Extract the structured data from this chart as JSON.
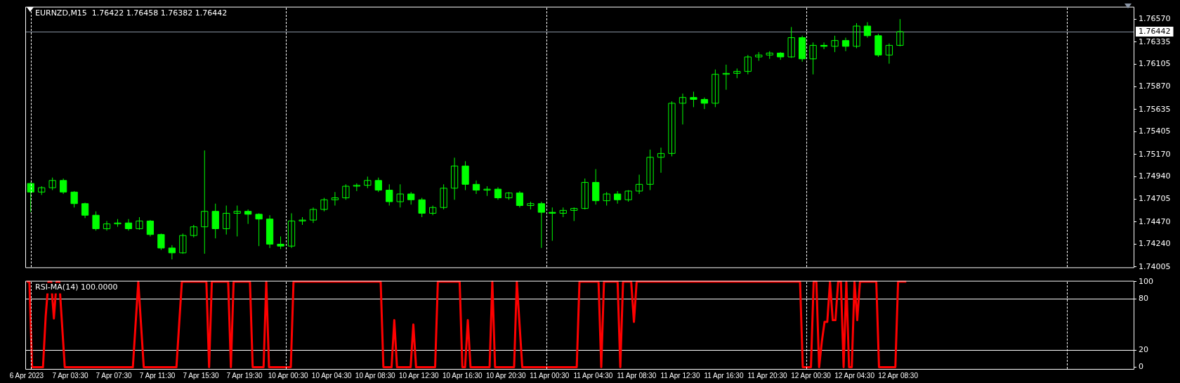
{
  "chart_data": [
    {
      "type": "candlestick",
      "title": "EURNZD,M15  1.76422 1.76458 1.76382 1.76442",
      "color": "#00ff00",
      "grid": false,
      "tick_labels": "y",
      "categories": [
        null,
        null,
        null,
        null,
        null,
        null,
        null,
        null,
        null,
        null,
        null,
        null,
        null,
        null,
        null,
        null,
        null,
        null,
        null,
        null,
        null,
        null,
        null,
        null,
        null,
        null,
        null,
        null,
        null,
        null,
        null,
        null,
        null,
        null,
        null,
        null,
        null,
        null,
        null,
        null,
        null,
        null,
        null,
        null,
        null,
        null,
        null,
        null,
        null,
        null,
        null,
        null,
        null,
        null,
        null,
        null,
        null,
        null,
        null,
        null,
        null,
        null,
        null,
        null,
        null,
        null,
        null,
        null,
        null,
        null,
        null,
        null,
        null,
        null,
        null,
        null,
        null,
        null,
        null,
        null,
        null,
        null,
        null,
        null,
        null,
        null,
        null,
        null,
        null,
        null,
        null,
        null,
        null,
        null,
        null,
        null,
        null,
        null,
        null,
        null,
        null,
        null
      ],
      "ohlc": [
        [
          1.74869,
          1.7488,
          1.74573,
          1.7478
        ],
        [
          1.7478,
          1.7484,
          1.7475,
          1.74825
        ],
        [
          1.74825,
          1.7493,
          1.748,
          1.749
        ],
        [
          1.749,
          1.7492,
          1.7476,
          1.7478
        ],
        [
          1.7478,
          1.7479,
          1.7462,
          1.7466
        ],
        [
          1.7466,
          1.7467,
          1.7451,
          1.7454
        ],
        [
          1.7454,
          1.7458,
          1.7438,
          1.744
        ],
        [
          1.744,
          1.7448,
          1.7438,
          1.7445
        ],
        [
          1.7445,
          1.745,
          1.7442,
          1.7446
        ],
        [
          1.7446,
          1.745,
          1.7438,
          1.744
        ],
        [
          1.744,
          1.7452,
          1.7439,
          1.7448
        ],
        [
          1.7448,
          1.7449,
          1.7432,
          1.7434
        ],
        [
          1.7434,
          1.7435,
          1.7418,
          1.742
        ],
        [
          1.742,
          1.7423,
          1.74082,
          1.7415
        ],
        [
          1.7415,
          1.7435,
          1.7414,
          1.7433
        ],
        [
          1.7433,
          1.7444,
          1.7431,
          1.7442
        ],
        [
          1.7442,
          1.75211,
          1.74141,
          1.7458
        ],
        [
          1.7458,
          1.7466,
          1.743,
          1.744
        ],
        [
          1.744,
          1.7464,
          1.7434,
          1.7456
        ],
        [
          1.7456,
          1.7464,
          1.7432,
          1.7458
        ],
        [
          1.7458,
          1.746,
          1.7445,
          1.7455
        ],
        [
          1.7455,
          1.7456,
          1.7422,
          1.745
        ],
        [
          1.745,
          1.7454,
          1.742,
          1.7424
        ],
        [
          1.7424,
          1.7432,
          1.7419,
          1.7422
        ],
        [
          1.7422,
          1.7456,
          1.742,
          1.7448
        ],
        [
          1.7448,
          1.7452,
          1.7444,
          1.7449
        ],
        [
          1.7449,
          1.7462,
          1.7446,
          1.746
        ],
        [
          1.746,
          1.7472,
          1.7458,
          1.747
        ],
        [
          1.747,
          1.7478,
          1.7464,
          1.7472
        ],
        [
          1.7472,
          1.7486,
          1.747,
          1.7484
        ],
        [
          1.7484,
          1.7487,
          1.7479,
          1.7485
        ],
        [
          1.7485,
          1.7494,
          1.7482,
          1.749
        ],
        [
          1.749,
          1.7493,
          1.7478,
          1.748
        ],
        [
          1.748,
          1.7486,
          1.7464,
          1.7468
        ],
        [
          1.7468,
          1.7486,
          1.7462,
          1.7476
        ],
        [
          1.7476,
          1.7478,
          1.7465,
          1.747
        ],
        [
          1.747,
          1.7472,
          1.7452,
          1.7456
        ],
        [
          1.7456,
          1.7464,
          1.7454,
          1.7462
        ],
        [
          1.7462,
          1.7486,
          1.746,
          1.7482
        ],
        [
          1.7482,
          1.75136,
          1.747,
          1.7505
        ],
        [
          1.7505,
          1.751,
          1.748,
          1.7486
        ],
        [
          1.7486,
          1.749,
          1.7476,
          1.748
        ],
        [
          1.748,
          1.7484,
          1.7474,
          1.7481
        ],
        [
          1.7481,
          1.7483,
          1.747,
          1.7472
        ],
        [
          1.7472,
          1.7478,
          1.747,
          1.7477
        ],
        [
          1.7477,
          1.7479,
          1.7462,
          1.7464
        ],
        [
          1.7464,
          1.7468,
          1.746,
          1.7466
        ],
        [
          1.7466,
          1.7468,
          1.74201,
          1.7457
        ],
        [
          1.7457,
          1.7462,
          1.74275,
          1.7456
        ],
        [
          1.7456,
          1.7462,
          1.7452,
          1.7459
        ],
        [
          1.7459,
          1.7462,
          1.7448,
          1.7461
        ],
        [
          1.7461,
          1.7492,
          1.746,
          1.7488
        ],
        [
          1.7488,
          1.75018,
          1.7465,
          1.7469
        ],
        [
          1.7469,
          1.7478,
          1.7464,
          1.7476
        ],
        [
          1.7476,
          1.7479,
          1.7466,
          1.747
        ],
        [
          1.747,
          1.748,
          1.7468,
          1.7479
        ],
        [
          1.7479,
          1.7496,
          1.7476,
          1.7486
        ],
        [
          1.7486,
          1.7522,
          1.748,
          1.7514
        ],
        [
          1.7514,
          1.7524,
          1.7498,
          1.7518
        ],
        [
          1.7518,
          1.7572,
          1.7515,
          1.757
        ],
        [
          1.757,
          1.758,
          1.7548,
          1.7576
        ],
        [
          1.7576,
          1.7582,
          1.7566,
          1.7574
        ],
        [
          1.7574,
          1.7576,
          1.7564,
          1.757
        ],
        [
          1.757,
          1.7605,
          1.7566,
          1.76
        ],
        [
          1.76,
          1.761,
          1.7584,
          1.7601
        ],
        [
          1.7601,
          1.7606,
          1.7596,
          1.7603
        ],
        [
          1.7603,
          1.762,
          1.76,
          1.7618
        ],
        [
          1.7618,
          1.7623,
          1.7614,
          1.762
        ],
        [
          1.762,
          1.7624,
          1.7616,
          1.7622
        ],
        [
          1.7622,
          1.7623,
          1.7615,
          1.7618
        ],
        [
          1.7618,
          1.7649,
          1.7617,
          1.7638
        ],
        [
          1.7638,
          1.764,
          1.7613,
          1.7616
        ],
        [
          1.7616,
          1.7633,
          1.75999,
          1.763
        ],
        [
          1.763,
          1.7633,
          1.7626,
          1.7629
        ],
        [
          1.7629,
          1.764,
          1.7623,
          1.7635
        ],
        [
          1.7635,
          1.7638,
          1.7624,
          1.7629
        ],
        [
          1.7629,
          1.7653,
          1.7627,
          1.765
        ],
        [
          1.765,
          1.7654,
          1.7638,
          1.764
        ],
        [
          1.764,
          1.7642,
          1.7618,
          1.762
        ],
        [
          1.762,
          1.7632,
          1.7611,
          1.763
        ],
        [
          1.763,
          1.76572,
          1.7629,
          1.76442
        ],
        null,
        null,
        null,
        null,
        null,
        null,
        null,
        null,
        null,
        null,
        null,
        null,
        null,
        null,
        null,
        null,
        null,
        null,
        null,
        null,
        null
      ],
      "ylim": [
        1.74,
        1.767
      ],
      "yticks": [
        {
          "value": 1.74005,
          "label": "1.74005"
        },
        {
          "value": 1.7424,
          "label": "1.74240"
        },
        {
          "value": 1.7447,
          "label": "1.74470"
        },
        {
          "value": 1.74705,
          "label": "1.74705"
        },
        {
          "value": 1.7494,
          "label": "1.74940"
        },
        {
          "value": 1.7517,
          "label": "1.75170"
        },
        {
          "value": 1.75405,
          "label": "1.75405"
        },
        {
          "value": 1.75635,
          "label": "1.75635"
        },
        {
          "value": 1.7587,
          "label": "1.75870"
        },
        {
          "value": 1.76105,
          "label": "1.76105"
        },
        {
          "value": 1.76335,
          "label": "1.76335"
        },
        {
          "value": 1.7657,
          "label": "1.76570"
        }
      ],
      "ref_lines": [
        {
          "axis": "y",
          "value": 1.76442,
          "label": "1.76442",
          "color": "#8a95a5"
        }
      ]
    },
    {
      "type": "line",
      "title": "RSI-MA(14) 100.0000",
      "grid": false,
      "legend": false,
      "marker": "none",
      "categories": [
        "6 Apr 2023",
        null,
        null,
        null,
        null,
        null,
        null,
        null,
        null,
        null,
        null,
        null,
        null,
        null,
        null,
        null,
        "7 Apr 03:30",
        null,
        null,
        null,
        null,
        null,
        null,
        null,
        null,
        null,
        null,
        null,
        null,
        null,
        null,
        null,
        "7 Apr 07:30",
        null,
        null,
        null,
        null,
        null,
        null,
        null,
        null,
        null,
        null,
        null,
        null,
        null,
        null,
        null,
        "7 Apr 11:30",
        null,
        null,
        null,
        null,
        null,
        null,
        null,
        null,
        null,
        null,
        null,
        null,
        null,
        null,
        null,
        "7 Apr 15:30",
        null,
        null,
        null,
        null,
        null,
        null,
        null,
        null,
        null,
        null,
        null,
        null,
        null,
        null,
        null,
        "7 Apr 19:30",
        null,
        null,
        null,
        null,
        null,
        null,
        null,
        null,
        null,
        null,
        null,
        null,
        null,
        null,
        null,
        "10 Apr 00:30",
        null,
        null,
        null,
        null,
        null,
        null,
        null,
        null,
        null,
        null,
        null,
        null,
        null,
        null,
        null,
        "10 Apr 04:30",
        null,
        null,
        null,
        null,
        null,
        null,
        null,
        null,
        null,
        null,
        null,
        null,
        null,
        null,
        null,
        "10 Apr 08:30",
        null,
        null,
        null,
        null,
        null,
        null,
        null,
        null,
        null,
        null,
        null,
        null,
        null,
        null,
        null,
        "10 Apr 12:30",
        null,
        null,
        null,
        null,
        null,
        null,
        null,
        null,
        null,
        null,
        null,
        null,
        null,
        null,
        null,
        "10 Apr 16:30",
        null,
        null,
        null,
        null,
        null,
        null,
        null,
        null,
        null,
        null,
        null,
        null,
        null,
        null,
        null,
        "10 Apr 20:30",
        null,
        null,
        null,
        null,
        null,
        null,
        null,
        null,
        null,
        null,
        null,
        null,
        null,
        null,
        null,
        "11 Apr 00:30",
        null,
        null,
        null,
        null,
        null,
        null,
        null,
        null,
        null,
        null,
        null,
        null,
        null,
        null,
        null,
        "11 Apr 04:30",
        null,
        null,
        null,
        null,
        null,
        null,
        null,
        null,
        null,
        null,
        null,
        null,
        null,
        null,
        null,
        "11 Apr 08:30",
        null,
        null,
        null,
        null,
        null,
        null,
        null,
        null,
        null,
        null,
        null,
        null,
        null,
        null,
        null,
        "11 Apr 12:30",
        null,
        null,
        null,
        null,
        null,
        null,
        null,
        null,
        null,
        null,
        null,
        null,
        null,
        null,
        null,
        "11 Apr 16:30",
        null,
        null,
        null,
        null,
        null,
        null,
        null,
        null,
        null,
        null,
        null,
        null,
        null,
        null,
        null,
        "11 Apr 20:30",
        null,
        null,
        null,
        null,
        null,
        null,
        null,
        null,
        null,
        null,
        null,
        null,
        null,
        null,
        null,
        "12 Apr 00:30",
        null,
        null,
        null,
        null,
        null,
        null,
        null,
        null,
        null,
        null,
        null,
        null,
        null,
        null,
        null,
        "12 Apr 04:30",
        null,
        null,
        null,
        null,
        null,
        null,
        null,
        null,
        null,
        null,
        null,
        null,
        null,
        null,
        null,
        "12 Apr 08:30",
        null,
        null,
        null,
        null,
        null,
        null,
        null,
        null,
        null,
        null,
        null,
        null,
        null,
        null,
        null,
        null,
        null,
        null,
        null,
        null,
        null,
        null,
        null,
        null,
        null,
        null,
        null,
        null,
        null,
        null,
        null,
        null,
        null,
        null,
        null,
        null,
        null,
        null,
        null,
        null,
        null,
        null,
        null,
        null,
        null,
        null,
        null,
        null,
        null,
        null,
        null,
        null,
        null,
        null,
        null,
        null,
        null,
        null,
        null,
        null,
        null,
        null,
        null,
        null,
        null,
        null,
        null,
        null,
        null,
        null,
        null,
        null,
        null,
        null,
        null,
        null,
        null,
        null,
        null,
        null,
        null,
        null,
        null,
        null,
        null,
        null
      ],
      "series": [
        {
          "color": "#ff0000",
          "values": [
            100,
            100,
            0,
            0,
            0,
            0,
            0,
            60,
            100,
            100,
            57,
            100,
            100,
            50,
            0,
            0,
            0,
            0,
            0,
            0,
            0,
            0,
            0,
            0,
            0,
            0,
            0,
            0,
            0,
            0,
            0,
            0,
            0,
            0,
            0,
            0,
            0,
            0,
            0,
            0,
            50,
            100,
            50,
            0,
            0,
            0,
            0,
            0,
            0,
            0,
            0,
            0,
            0,
            0,
            0,
            0,
            50,
            100,
            100,
            100,
            100,
            100,
            100,
            100,
            100,
            100,
            100,
            0,
            100,
            100,
            100,
            100,
            100,
            100,
            100,
            0,
            100,
            100,
            100,
            100,
            100,
            100,
            100,
            0,
            0,
            0,
            0,
            0,
            100,
            0,
            0,
            0,
            0,
            0,
            0,
            0,
            0,
            0,
            100,
            100,
            100,
            100,
            100,
            100,
            100,
            100,
            100,
            100,
            100,
            100,
            100,
            100,
            100,
            100,
            100,
            100,
            100,
            100,
            100,
            100,
            100,
            100,
            100,
            100,
            100,
            100,
            100,
            100,
            100,
            100,
            100,
            0,
            0,
            0,
            0,
            55,
            0,
            0,
            0,
            0,
            0,
            0,
            50,
            0,
            0,
            0,
            0,
            0,
            0,
            0,
            0,
            100,
            100,
            100,
            100,
            100,
            100,
            100,
            100,
            100,
            0,
            0,
            55,
            0,
            0,
            0,
            0,
            0,
            0,
            0,
            0,
            100,
            0,
            0,
            0,
            0,
            0,
            0,
            0,
            0,
            100,
            50,
            0,
            0,
            0,
            0,
            0,
            0,
            0,
            0,
            0,
            0,
            0,
            0,
            0,
            0,
            0,
            0,
            0,
            0,
            0,
            0,
            0,
            100,
            100,
            100,
            100,
            100,
            100,
            100,
            100,
            0,
            100,
            100,
            100,
            100,
            100,
            100,
            0,
            100,
            100,
            100,
            100,
            53,
            100,
            100,
            100,
            100,
            100,
            100,
            100,
            100,
            100,
            100,
            100,
            100,
            100,
            100,
            100,
            100,
            100,
            100,
            100,
            100,
            100,
            100,
            100,
            100,
            100,
            100,
            100,
            100,
            100,
            100,
            100,
            100,
            100,
            100,
            100,
            100,
            100,
            100,
            100,
            100,
            100,
            100,
            100,
            100,
            100,
            100,
            100,
            100,
            100,
            100,
            100,
            100,
            100,
            100,
            100,
            100,
            100,
            100,
            100,
            100,
            100,
            0,
            0,
            0,
            0,
            100,
            100,
            0,
            30,
            53,
            53,
            100,
            55,
            55,
            100,
            100,
            0,
            100,
            0,
            0,
            100,
            55,
            100,
            100,
            100,
            100,
            100,
            100,
            100,
            0,
            0,
            0,
            0,
            0,
            0,
            0,
            100,
            100,
            100,
            100,
            null,
            null,
            null,
            null,
            null,
            null,
            null,
            null,
            null,
            null,
            null,
            null,
            null,
            null,
            null,
            null,
            null,
            null,
            null,
            null,
            null,
            null,
            null,
            null,
            null,
            null,
            null,
            null,
            null,
            null,
            null,
            null,
            null,
            null,
            null,
            null,
            null,
            null,
            null,
            null,
            null,
            null,
            null,
            null,
            null,
            null,
            null,
            null,
            null,
            null,
            null,
            null,
            null,
            null,
            null,
            null,
            null,
            null,
            null,
            null,
            null,
            null,
            null,
            null,
            null,
            null,
            null,
            null,
            null,
            null,
            null,
            null,
            null,
            null,
            null,
            null,
            null,
            null,
            null,
            null,
            null,
            null,
            null
          ]
        }
      ],
      "ylim": [
        -2,
        101
      ],
      "yticks": [
        0,
        20,
        80,
        100
      ],
      "ref_lines": [
        {
          "axis": "y",
          "value": 20,
          "color": "#ffffff"
        },
        {
          "axis": "y",
          "value": 80,
          "color": "#ffffff"
        }
      ]
    }
  ]
}
